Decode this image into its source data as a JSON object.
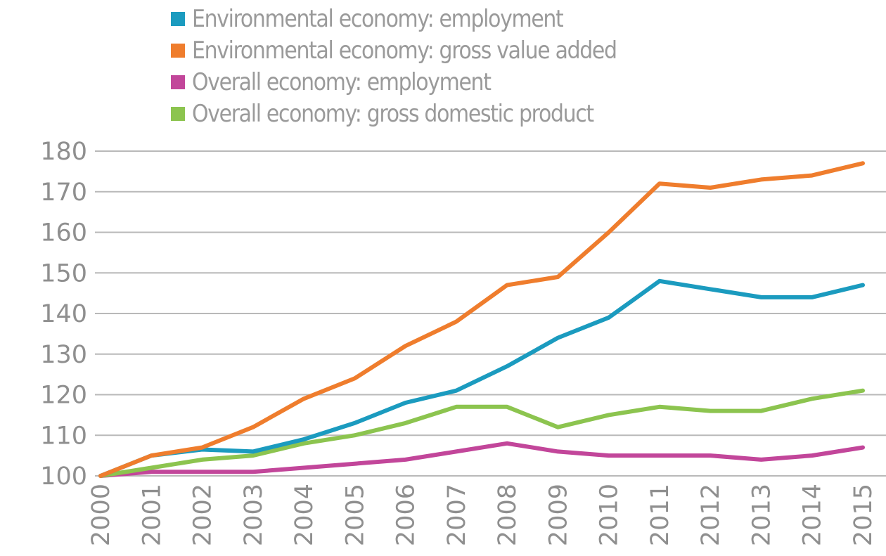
{
  "chart_data": {
    "type": "line",
    "x": [
      "2000",
      "2001",
      "2002",
      "2003",
      "2004",
      "2005",
      "2006",
      "2007",
      "2008",
      "2009",
      "2010",
      "2011",
      "2012",
      "2013",
      "2014",
      "2015"
    ],
    "series": [
      {
        "name": "Environmental economy: employment",
        "color": "#1b9bbf",
        "values": [
          100,
          105,
          106.5,
          106,
          109,
          113,
          118,
          121,
          127,
          134,
          139,
          148,
          146,
          144,
          144,
          147
        ]
      },
      {
        "name": "Environmental economy: gross value added",
        "color": "#ef7d2d",
        "values": [
          100,
          105,
          107,
          112,
          119,
          124,
          132,
          138,
          147,
          149,
          160,
          172,
          171,
          173,
          174,
          177
        ]
      },
      {
        "name": "Overall economy: employment",
        "color": "#c2469a",
        "values": [
          100,
          101,
          101,
          101,
          102,
          103,
          104,
          106,
          108,
          106,
          105,
          105,
          105,
          104,
          105,
          107
        ]
      },
      {
        "name": "Overall economy: gross domestic product",
        "color": "#8cc44f",
        "values": [
          100,
          102,
          104,
          105,
          108,
          110,
          113,
          117,
          117,
          112,
          115,
          117,
          116,
          116,
          119,
          121
        ]
      }
    ],
    "y_ticks": [
      "100",
      "110",
      "120",
      "130",
      "140",
      "150",
      "160",
      "170",
      "180"
    ],
    "ylim": [
      100,
      180
    ],
    "xlabel": "",
    "ylabel": "",
    "grid": true,
    "legend_position": "top"
  }
}
